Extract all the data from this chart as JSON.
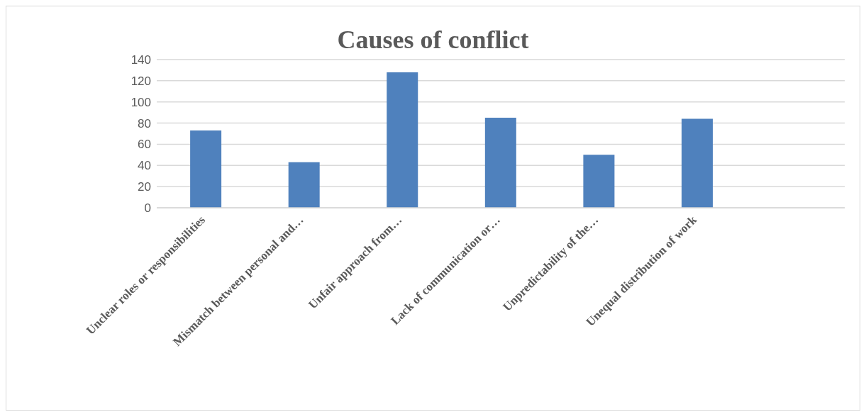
{
  "chart_data": {
    "type": "bar",
    "title": "Causes of conflict",
    "categories": [
      "Unclear roles or responsibilities",
      "Mismatch between personal and…",
      "Unfair approach from…",
      "Lack of communication or…",
      "Unpredictability of the…",
      "Unequal distribution of work",
      null
    ],
    "values": [
      73,
      43,
      128,
      85,
      50,
      84,
      null
    ],
    "color": "#4f81bd",
    "ylim": [
      0,
      140
    ],
    "yticks": [
      0,
      20,
      40,
      60,
      80,
      100,
      120,
      140
    ],
    "grid": "y"
  }
}
